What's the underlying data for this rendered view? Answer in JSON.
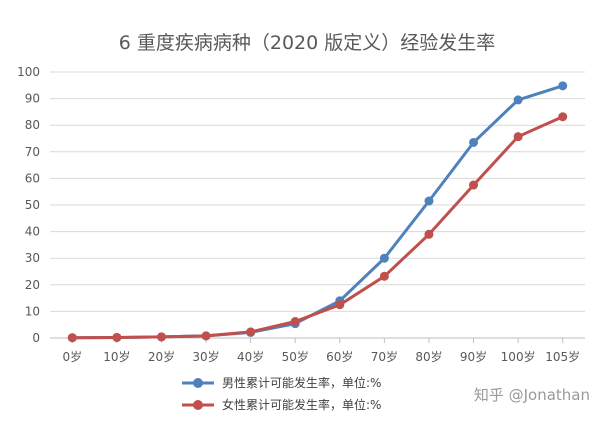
{
  "chart_data": {
    "type": "line",
    "title": "6 重度疾病病种（2020 版定义）经验发生率",
    "categories": [
      "0岁",
      "10岁",
      "20岁",
      "30岁",
      "40岁",
      "50岁",
      "60岁",
      "70岁",
      "80岁",
      "90岁",
      "100岁",
      "105岁"
    ],
    "y_ticks": [
      "0",
      "10",
      "20",
      "30",
      "40",
      "50",
      "60",
      "70",
      "80",
      "90",
      "100"
    ],
    "ylim": [
      0,
      100
    ],
    "grid": true,
    "legend_position": "bottom",
    "series": [
      {
        "name": "男性累计可能发生率，单位:%",
        "color": "#4f81bd",
        "values": [
          0.1,
          0.2,
          0.4,
          0.8,
          2.1,
          5.4,
          14.0,
          30.0,
          51.5,
          73.5,
          89.5,
          94.8
        ]
      },
      {
        "name": "女性累计可能发生率，单位:%",
        "color": "#c0504d",
        "values": [
          0.1,
          0.2,
          0.4,
          0.8,
          2.3,
          6.2,
          12.5,
          23.2,
          39.0,
          57.5,
          75.7,
          83.2
        ]
      }
    ]
  },
  "watermark": "知乎 @Jonathan"
}
